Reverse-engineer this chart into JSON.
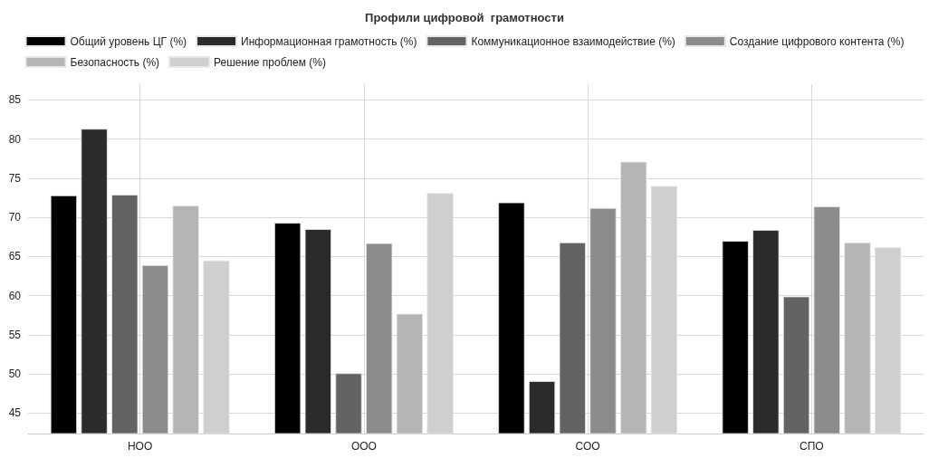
{
  "chart_data": {
    "type": "bar",
    "title": "Профили цифровой  грамотности",
    "categories": [
      "НОО",
      "ООО",
      "СОО",
      "СПО"
    ],
    "series": [
      {
        "name": "Общий уровень ЦГ (%)",
        "color": "#000000",
        "values": [
          72.8,
          69.3,
          71.9,
          67.0
        ]
      },
      {
        "name": "Информационная грамотность (%)",
        "color": "#2b2b2b",
        "values": [
          81.3,
          68.5,
          49.1,
          68.4
        ]
      },
      {
        "name": "Коммуникационное взаимодействие (%)",
        "color": "#636363",
        "values": [
          72.9,
          50.1,
          66.8,
          59.9
        ]
      },
      {
        "name": "Создание цифрового контента (%)",
        "color": "#8c8c8c",
        "values": [
          63.9,
          66.7,
          71.2,
          71.4
        ]
      },
      {
        "name": "Безопасность (%)",
        "color": "#b5b5b5",
        "values": [
          71.5,
          57.7,
          77.1,
          66.8
        ]
      },
      {
        "name": "Решение проблем (%)",
        "color": "#cfcfcf",
        "values": [
          64.5,
          73.1,
          74.0,
          66.2
        ]
      }
    ],
    "ylim": [
      42.4,
      87
    ],
    "yticks": [
      45,
      50,
      55,
      60,
      65,
      70,
      75,
      80,
      85
    ],
    "grid": true,
    "legend": "top"
  }
}
